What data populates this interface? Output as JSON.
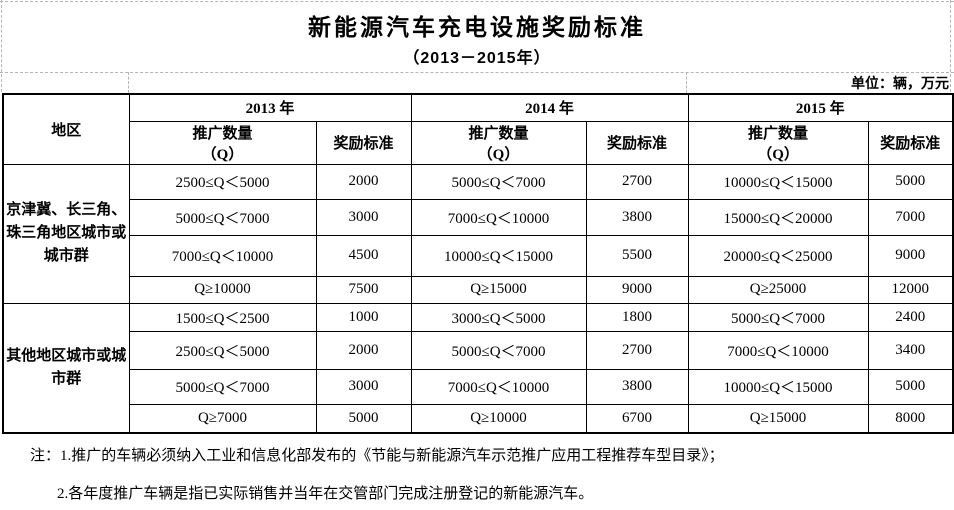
{
  "title": "新能源汽车充电设施奖励标准",
  "subtitle": "（2013－2015年）",
  "unit_label": "单位：辆，万元",
  "table": {
    "region_header": "地区",
    "years": [
      "2013 年",
      "2014 年",
      "2015 年"
    ],
    "columns": {
      "qty_line1": "推广数量",
      "qty_line2": "（Q）",
      "reward": "奖励标准"
    },
    "regions": [
      {
        "name": "京津冀、长三角、珠三角地区城市或城市群",
        "rows": [
          [
            "2500≤Q＜5000",
            "2000",
            "5000≤Q＜7000",
            "2700",
            "10000≤Q＜15000",
            "5000"
          ],
          [
            "5000≤Q＜7000",
            "3000",
            "7000≤Q＜10000",
            "3800",
            "15000≤Q＜20000",
            "7000"
          ],
          [
            "7000≤Q＜10000",
            "4500",
            "10000≤Q＜15000",
            "5500",
            "20000≤Q＜25000",
            "9000"
          ],
          [
            "Q≥10000",
            "7500",
            "Q≥15000",
            "9000",
            "Q≥25000",
            "12000"
          ]
        ]
      },
      {
        "name": "其他地区城市或城市群",
        "rows": [
          [
            "1500≤Q＜2500",
            "1000",
            "3000≤Q＜5000",
            "1800",
            "5000≤Q＜7000",
            "2400"
          ],
          [
            "2500≤Q＜5000",
            "2000",
            "5000≤Q＜7000",
            "2700",
            "7000≤Q＜10000",
            "3400"
          ],
          [
            "5000≤Q＜7000",
            "3000",
            "7000≤Q＜10000",
            "3800",
            "10000≤Q＜15000",
            "5000"
          ],
          [
            "Q≥7000",
            "5000",
            "Q≥10000",
            "6700",
            "Q≥15000",
            "8000"
          ]
        ]
      }
    ]
  },
  "notes": {
    "line1": "注：1.推广的车辆必须纳入工业和信息化部发布的《节能与新能源汽车示范推广应用工程推荐车型目录》；",
    "line2": "2.各年度推广车辆是指已实际销售并当年在交管部门完成注册登记的新能源汽车。"
  }
}
